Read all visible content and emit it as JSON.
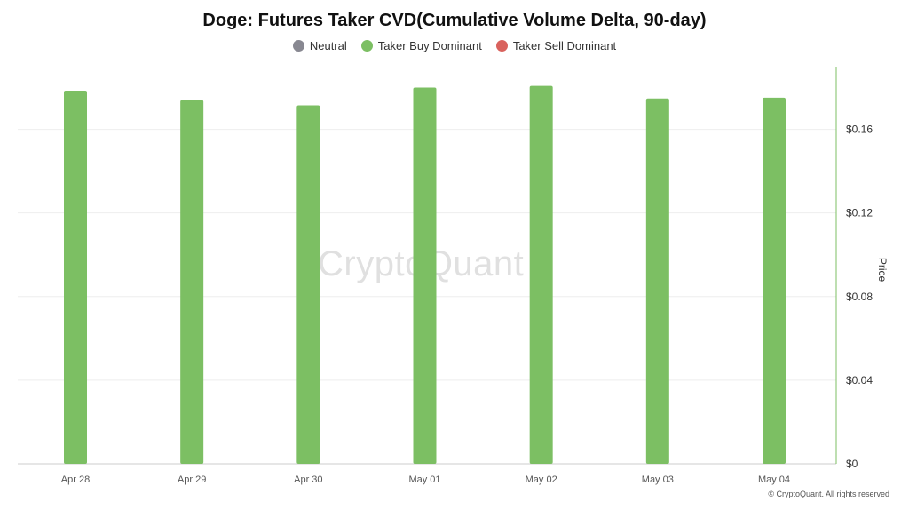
{
  "chart_data": {
    "type": "bar",
    "title": "Doge: Futures Taker CVD(Cumulative Volume Delta, 90-day)",
    "categories": [
      "Apr 28",
      "Apr 29",
      "Apr 30",
      "May 01",
      "May 02",
      "May 03",
      "May 04"
    ],
    "series": [
      {
        "name": "Taker Buy Dominant",
        "values": [
          0.1785,
          0.174,
          0.1715,
          0.18,
          0.1808,
          0.1748,
          0.1752
        ]
      }
    ],
    "legend": [
      {
        "name": "Neutral",
        "color": "#888891"
      },
      {
        "name": "Taker Buy Dominant",
        "color": "#7cbf63"
      },
      {
        "name": "Taker Sell Dominant",
        "color": "#d9625d"
      }
    ],
    "ylabel": "Price",
    "yaxis_position": "right",
    "ylim": [
      0,
      0.19
    ],
    "yticks": [
      0,
      0.04,
      0.08,
      0.12,
      0.16
    ],
    "ytick_labels": [
      "$0",
      "$0.04",
      "$0.08",
      "$0.12",
      "$0.16"
    ],
    "grid": true,
    "legend_placement": "top-center"
  },
  "colors": {
    "bar": "#7cbf63",
    "axis_line": "#7cbf63",
    "grid": "#eeeeee"
  },
  "watermark": "CryptoQuant",
  "copyright": "© CryptoQuant. All rights reserved"
}
